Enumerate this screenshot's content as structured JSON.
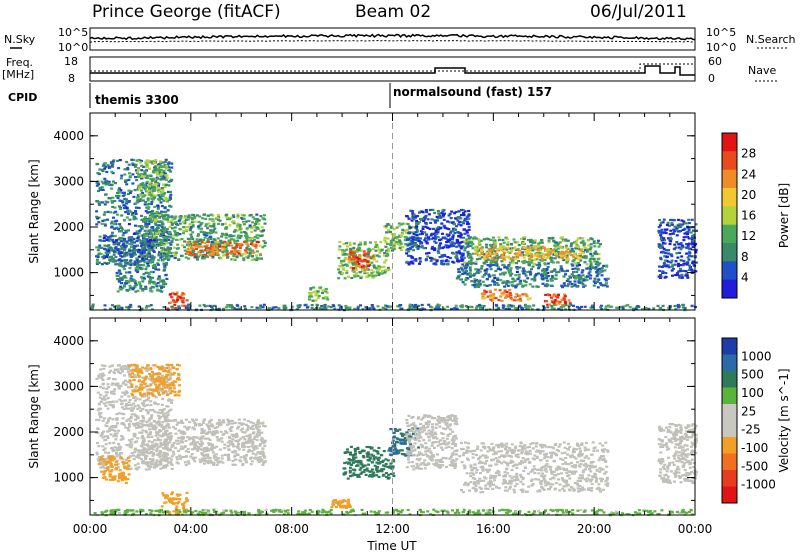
{
  "header": {
    "station": "Prince George (fitACF)",
    "beam": "Beam 02",
    "date": "06/Jul/2011"
  },
  "strip_labels": {
    "nsky": "N.Sky",
    "nsky_ticks": [
      "10^5",
      "10^0"
    ],
    "nsearch": "N.Search",
    "nsearch_ticks": [
      "10^5",
      "10^0"
    ],
    "freq": "Freq.",
    "freq_unit": "[MHz]",
    "freq_ticks": [
      "18",
      "8"
    ],
    "nave": "Nave",
    "nave_ticks": [
      "60",
      "0"
    ],
    "cpid": "CPID",
    "cpid_left": "themis 3300",
    "cpid_right": "normalsound (fast) 157"
  },
  "colors": {
    "power_scale": [
      "#1f1fdb",
      "#1f50c8",
      "#3a8a6a",
      "#4aa85a",
      "#b4d23c",
      "#f2c832",
      "#f08c28",
      "#e84a1e",
      "#e01414"
    ],
    "velocity_scale": [
      "#1e3ca8",
      "#2a6aa8",
      "#2f7a5a",
      "#5ab43c",
      "#c8c8c0",
      "#c8c8c0",
      "#f0a028",
      "#f07020",
      "#e83c1e",
      "#e01414"
    ],
    "ground_scatter": "#c0c0b8"
  },
  "chart_data": [
    {
      "type": "heatmap",
      "quantity": "Power",
      "colorbar_title": "Power [dB]",
      "colorbar_ticks": [
        "28",
        "24",
        "20",
        "16",
        "12",
        "8",
        "4"
      ],
      "xlabel": "",
      "ylabel": "Slant Range [km]",
      "yticks": [
        "4000",
        "3000",
        "2000",
        "1000"
      ],
      "ylim": [
        180,
        4500
      ],
      "xlim": [
        0,
        24
      ],
      "regions": [
        {
          "t0": 0.2,
          "t1": 3.2,
          "r0": 1200,
          "r1": 3500,
          "v": 9
        },
        {
          "t0": 2.0,
          "t1": 6.9,
          "r0": 1300,
          "r1": 2300,
          "v": 12
        },
        {
          "t0": 3.8,
          "t1": 6.7,
          "r0": 1400,
          "r1": 1700,
          "v": 24
        },
        {
          "t0": 1.8,
          "t1": 3.0,
          "r0": 2600,
          "r1": 3500,
          "v": 14
        },
        {
          "t0": 0.5,
          "t1": 2.5,
          "r0": 1200,
          "r1": 1800,
          "v": 8
        },
        {
          "t0": 3.0,
          "t1": 3.8,
          "r0": 200,
          "r1": 600,
          "v": 26
        },
        {
          "t0": 1.0,
          "t1": 3.0,
          "r0": 600,
          "r1": 1300,
          "v": 10
        },
        {
          "t0": 9.8,
          "t1": 11.8,
          "r0": 900,
          "r1": 1700,
          "v": 14
        },
        {
          "t0": 10.2,
          "t1": 11.2,
          "r0": 1100,
          "r1": 1500,
          "v": 26
        },
        {
          "t0": 11.6,
          "t1": 13.0,
          "r0": 1500,
          "r1": 2100,
          "v": 14
        },
        {
          "t0": 12.5,
          "t1": 15.0,
          "r0": 1200,
          "r1": 2400,
          "v": 6
        },
        {
          "t0": 14.8,
          "t1": 20.2,
          "r0": 1200,
          "r1": 1800,
          "v": 12
        },
        {
          "t0": 15.2,
          "t1": 19.5,
          "r0": 1300,
          "r1": 1600,
          "v": 20
        },
        {
          "t0": 14.5,
          "t1": 20.5,
          "r0": 700,
          "r1": 1200,
          "v": 9
        },
        {
          "t0": 15.5,
          "t1": 17.5,
          "r0": 400,
          "r1": 650,
          "v": 24
        },
        {
          "t0": 18.0,
          "t1": 19.0,
          "r0": 300,
          "r1": 550,
          "v": 26
        },
        {
          "t0": 22.5,
          "t1": 24.0,
          "r0": 900,
          "r1": 2200,
          "v": 6
        },
        {
          "t0": 0.0,
          "t1": 24.0,
          "r0": 200,
          "r1": 320,
          "v": 10
        },
        {
          "t0": 8.6,
          "t1": 9.4,
          "r0": 400,
          "r1": 700,
          "v": 14
        }
      ]
    },
    {
      "type": "heatmap",
      "quantity": "Velocity",
      "colorbar_title": "Velocity [m s^-1]",
      "colorbar_ticks": [
        "1000",
        "500",
        "100",
        "25",
        "-25",
        "-100",
        "-500",
        "-1000"
      ],
      "xlabel": "Time UT",
      "ylabel": "Slant Range [km]",
      "xticks": [
        "00:00",
        "04:00",
        "08:00",
        "12:00",
        "16:00",
        "20:00",
        "00:00"
      ],
      "yticks": [
        "4000",
        "3000",
        "2000",
        "1000"
      ],
      "ylim": [
        180,
        4500
      ],
      "xlim": [
        0,
        24
      ],
      "regions": [
        {
          "t0": 0.2,
          "t1": 3.2,
          "r0": 1200,
          "r1": 3500,
          "v": 0
        },
        {
          "t0": 2.0,
          "t1": 6.9,
          "r0": 1300,
          "r1": 2300,
          "v": 0
        },
        {
          "t0": 0.3,
          "t1": 1.5,
          "r0": 900,
          "r1": 1500,
          "v": -300
        },
        {
          "t0": 2.8,
          "t1": 3.8,
          "r0": 200,
          "r1": 700,
          "v": -250
        },
        {
          "t0": 1.5,
          "t1": 3.5,
          "r0": 2800,
          "r1": 3500,
          "v": -150
        },
        {
          "t0": 10.0,
          "t1": 12.0,
          "r0": 1000,
          "r1": 1700,
          "v": 150
        },
        {
          "t0": 11.8,
          "t1": 13.0,
          "r0": 1500,
          "r1": 2100,
          "v": 500
        },
        {
          "t0": 12.5,
          "t1": 14.5,
          "r0": 1200,
          "r1": 2400,
          "v": 0
        },
        {
          "t0": 14.6,
          "t1": 20.5,
          "r0": 700,
          "r1": 1800,
          "v": 0
        },
        {
          "t0": 22.5,
          "t1": 24.0,
          "r0": 900,
          "r1": 2200,
          "v": 0
        },
        {
          "t0": 0.0,
          "t1": 24.0,
          "r0": 200,
          "r1": 320,
          "v": 50
        },
        {
          "t0": 9.5,
          "t1": 10.3,
          "r0": 350,
          "r1": 550,
          "v": -200
        }
      ]
    }
  ]
}
